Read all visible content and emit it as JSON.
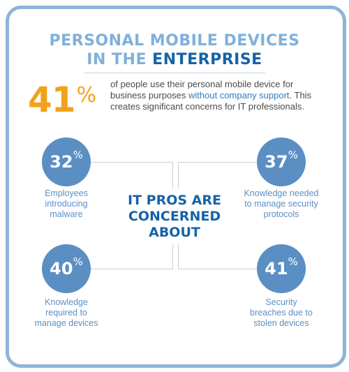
{
  "title": {
    "line1": "PERSONAL MOBILE DEVICES",
    "line2_prefix": "IN THE",
    "line2_emph": "ENTERPRISE"
  },
  "headline_stat": {
    "value": "41",
    "unit": "%",
    "text_before": "of people use their personal mobile device for business purposes ",
    "text_highlight": "without company support",
    "text_after": ". This creates significant concerns for IT professionals."
  },
  "center_label": [
    "IT PROS ARE",
    "CONCERNED",
    "ABOUT"
  ],
  "concerns": [
    {
      "value": "32",
      "unit": "%",
      "label_lines": [
        "Employees",
        "introducing",
        "malware"
      ]
    },
    {
      "value": "37",
      "unit": "%",
      "label_lines": [
        "Knowledge needed",
        "to manage security",
        "protocols"
      ]
    },
    {
      "value": "40",
      "unit": "%",
      "label_lines": [
        "Knowledge",
        "required to",
        "manage devices"
      ]
    },
    {
      "value": "41",
      "unit": "%",
      "label_lines": [
        "Security",
        "breaches due to",
        "stolen devices"
      ]
    }
  ],
  "colors": {
    "border": "#8fb4d6",
    "title_light": "#7fb0dc",
    "title_dark": "#1563a8",
    "headline_orange": "#f1a21b",
    "circle_blue": "#5b8fc3",
    "connector_gray": "#c7d0d8"
  }
}
